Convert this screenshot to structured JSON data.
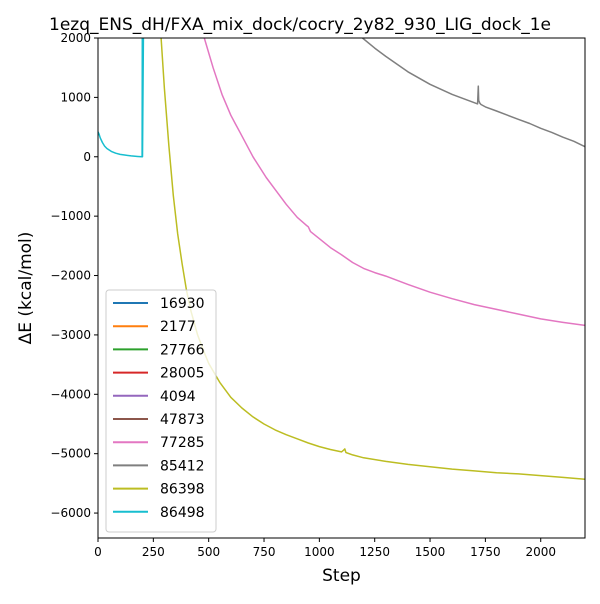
{
  "chart_data": {
    "type": "line",
    "title": "1ezq_ENS_dH/FXA_mix_dock/cocry_2y82_930_LIG_dock_1e",
    "xlabel": "Step",
    "ylabel": "ΔE (kcal/mol)",
    "xlim": [
      0,
      2200
    ],
    "ylim": [
      -6420,
      2000
    ],
    "xticks": [
      0,
      250,
      500,
      750,
      1000,
      1250,
      1500,
      1750,
      2000
    ],
    "xtick_labels": [
      "0",
      "250",
      "500",
      "750",
      "1000",
      "1250",
      "1500",
      "1750",
      "2000"
    ],
    "yticks": [
      2000,
      1000,
      0,
      -1000,
      -2000,
      -3000,
      -4000,
      -5000,
      -6000
    ],
    "ytick_labels": [
      "2000",
      "1000",
      "0",
      "−1000",
      "−2000",
      "−3000",
      "−4000",
      "−5000",
      "−6000"
    ],
    "grid": false,
    "legend_position": "lower-left",
    "series": [
      {
        "name": "16930",
        "color": "#1f77b4",
        "x": [],
        "y": []
      },
      {
        "name": "2177",
        "color": "#ff7f0e",
        "x": [],
        "y": []
      },
      {
        "name": "27766",
        "color": "#2ca02c",
        "x": [],
        "y": []
      },
      {
        "name": "28005",
        "color": "#d62728",
        "x": [],
        "y": []
      },
      {
        "name": "4094",
        "color": "#9467bd",
        "x": [],
        "y": []
      },
      {
        "name": "47873",
        "color": "#8c564b",
        "x": [],
        "y": []
      },
      {
        "name": "77285",
        "color": "#e377c2",
        "x": [
          480,
          520,
          560,
          600,
          620,
          640,
          700,
          760,
          800,
          850,
          900,
          940,
          950,
          960,
          1000,
          1050,
          1100,
          1150,
          1200,
          1250,
          1300,
          1400,
          1500,
          1600,
          1700,
          1800,
          1900,
          2000,
          2100,
          2200
        ],
        "y": [
          2000,
          1500,
          1050,
          700,
          560,
          420,
          0,
          -350,
          -550,
          -800,
          -1020,
          -1150,
          -1180,
          -1260,
          -1380,
          -1530,
          -1650,
          -1780,
          -1880,
          -1950,
          -2010,
          -2150,
          -2280,
          -2390,
          -2490,
          -2570,
          -2650,
          -2730,
          -2790,
          -2840
        ]
      },
      {
        "name": "85412",
        "color": "#7f7f7f",
        "x": [
          1195,
          1250,
          1300,
          1400,
          1500,
          1600,
          1700,
          1715,
          1718,
          1720,
          1725,
          1730,
          1750,
          1800,
          1850,
          1900,
          1950,
          2000,
          2050,
          2100,
          2150,
          2200
        ],
        "y": [
          2000,
          1830,
          1690,
          1430,
          1220,
          1050,
          910,
          890,
          1190,
          950,
          900,
          880,
          840,
          770,
          700,
          630,
          560,
          480,
          410,
          330,
          260,
          170
        ]
      },
      {
        "name": "86398",
        "color": "#bcbd22",
        "x": [
          285,
          300,
          320,
          340,
          360,
          380,
          400,
          420,
          450,
          480,
          500,
          550,
          600,
          650,
          700,
          750,
          800,
          850,
          900,
          950,
          1000,
          1050,
          1100,
          1110,
          1115,
          1120,
          1150,
          1200,
          1300,
          1400,
          1500,
          1600,
          1700,
          1800,
          1900,
          2000,
          2100,
          2200
        ],
        "y": [
          2000,
          1150,
          200,
          -650,
          -1300,
          -1800,
          -2250,
          -2600,
          -3000,
          -3300,
          -3480,
          -3800,
          -4050,
          -4230,
          -4380,
          -4500,
          -4600,
          -4680,
          -4750,
          -4820,
          -4880,
          -4930,
          -4970,
          -4940,
          -4920,
          -4980,
          -5020,
          -5070,
          -5130,
          -5180,
          -5220,
          -5260,
          -5290,
          -5320,
          -5340,
          -5370,
          -5400,
          -5430
        ]
      },
      {
        "name": "86498",
        "color": "#17becf",
        "x": [
          0,
          5,
          10,
          20,
          30,
          40,
          60,
          80,
          100,
          120,
          150,
          180,
          199,
          200,
          201,
          205
        ],
        "y": [
          420,
          380,
          320,
          240,
          180,
          140,
          90,
          60,
          40,
          30,
          15,
          5,
          0,
          2000,
          0,
          2000
        ]
      }
    ]
  }
}
